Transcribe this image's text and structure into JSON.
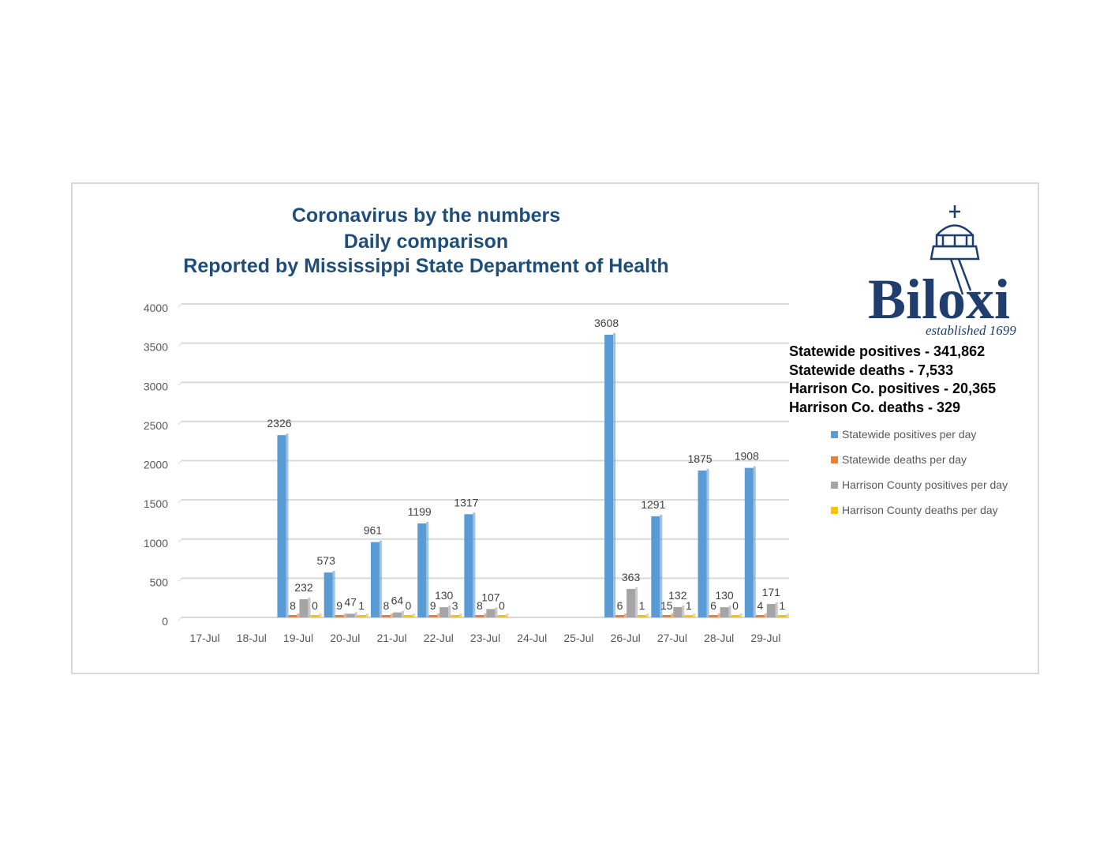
{
  "chart_data": {
    "type": "bar",
    "title": [
      "Coronavirus by the numbers",
      "Daily comparison",
      "Reported by Mississippi State Department of Health"
    ],
    "categories": [
      "17-Jul",
      "18-Jul",
      "19-Jul",
      "20-Jul",
      "21-Jul",
      "22-Jul",
      "23-Jul",
      "24-Jul",
      "25-Jul",
      "26-Jul",
      "27-Jul",
      "28-Jul",
      "29-Jul"
    ],
    "ylim": [
      0,
      4000
    ],
    "yticks": [
      0,
      500,
      1000,
      1500,
      2000,
      2500,
      3000,
      3500,
      4000
    ],
    "grid": true,
    "legend_position": "right",
    "series": [
      {
        "name": "Statewide positives per day",
        "color": "#5b9bd5",
        "values": [
          null,
          null,
          2326,
          573,
          961,
          1199,
          1317,
          null,
          null,
          3608,
          1291,
          1875,
          1908
        ]
      },
      {
        "name": "Statewide deaths per day",
        "color": "#ed7d31",
        "values": [
          null,
          null,
          8,
          9,
          8,
          9,
          8,
          null,
          null,
          6,
          15,
          6,
          4
        ]
      },
      {
        "name": "Harrison County positives per day",
        "color": "#a5a5a5",
        "values": [
          null,
          null,
          232,
          47,
          64,
          130,
          107,
          null,
          null,
          363,
          132,
          130,
          171
        ]
      },
      {
        "name": "Harrison County deaths per day",
        "color": "#ffc000",
        "values": [
          null,
          null,
          0,
          1,
          0,
          3,
          0,
          null,
          null,
          1,
          1,
          0,
          1
        ]
      }
    ]
  },
  "stats": [
    "Statewide positives - 341,862",
    "Statewide deaths - 7,533",
    "Harrison Co. positives - 20,365",
    "Harrison Co. deaths - 329"
  ],
  "logo": {
    "name": "Biloxi",
    "tagline": "established 1699"
  }
}
